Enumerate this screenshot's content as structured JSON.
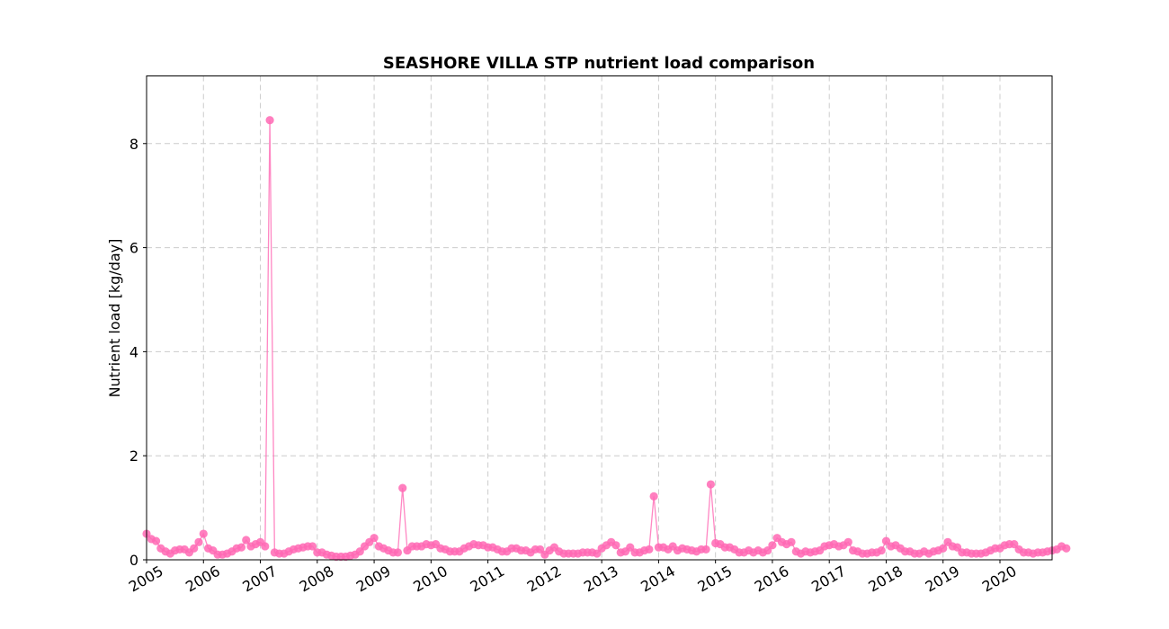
{
  "chart_data": {
    "type": "line",
    "title": "SEASHORE VILLA STP nutrient load comparison",
    "xlabel": "",
    "ylabel": "Nutrient load [kg/day]",
    "x_ticks": [
      "2005",
      "2006",
      "2007",
      "2008",
      "2009",
      "2010",
      "2011",
      "2012",
      "2013",
      "2014",
      "2015",
      "2016",
      "2017",
      "2018",
      "2019",
      "2020"
    ],
    "y_ticks": [
      0,
      2,
      4,
      6,
      8
    ],
    "xlim": [
      "2005-01",
      "2020-12"
    ],
    "ylim": [
      0,
      9.3
    ],
    "grid": true,
    "legend": "none",
    "colors": {
      "series": "#ff69b4",
      "grid": "#cccccc",
      "axes": "#000000"
    },
    "series": [
      {
        "x_start": "2005-01",
        "frequency": "monthly",
        "values": [
          0.5,
          0.4,
          0.36,
          0.22,
          0.16,
          0.12,
          0.18,
          0.2,
          0.2,
          0.14,
          0.22,
          0.34,
          0.5,
          0.22,
          0.18,
          0.1,
          0.1,
          0.12,
          0.16,
          0.22,
          0.24,
          0.38,
          0.26,
          0.3,
          0.34,
          0.26,
          8.45,
          0.14,
          0.12,
          0.12,
          0.16,
          0.2,
          0.22,
          0.24,
          0.26,
          0.26,
          0.14,
          0.14,
          0.1,
          0.08,
          0.06,
          0.06,
          0.06,
          0.08,
          0.1,
          0.16,
          0.26,
          0.34,
          0.42,
          0.26,
          0.22,
          0.18,
          0.14,
          0.14,
          1.38,
          0.18,
          0.26,
          0.26,
          0.26,
          0.3,
          0.28,
          0.3,
          0.22,
          0.2,
          0.16,
          0.16,
          0.16,
          0.22,
          0.26,
          0.3,
          0.28,
          0.28,
          0.24,
          0.24,
          0.2,
          0.16,
          0.16,
          0.22,
          0.22,
          0.18,
          0.18,
          0.14,
          0.2,
          0.2,
          0.1,
          0.18,
          0.24,
          0.16,
          0.12,
          0.12,
          0.12,
          0.12,
          0.14,
          0.14,
          0.14,
          0.12,
          0.22,
          0.28,
          0.34,
          0.28,
          0.14,
          0.16,
          0.24,
          0.14,
          0.14,
          0.18,
          0.2,
          1.22,
          0.24,
          0.24,
          0.2,
          0.26,
          0.18,
          0.22,
          0.2,
          0.18,
          0.16,
          0.2,
          0.2,
          1.45,
          0.32,
          0.3,
          0.24,
          0.24,
          0.2,
          0.14,
          0.14,
          0.18,
          0.14,
          0.18,
          0.14,
          0.18,
          0.28,
          0.42,
          0.34,
          0.3,
          0.34,
          0.16,
          0.12,
          0.16,
          0.14,
          0.16,
          0.18,
          0.26,
          0.28,
          0.3,
          0.26,
          0.28,
          0.34,
          0.18,
          0.16,
          0.12,
          0.12,
          0.14,
          0.14,
          0.18,
          0.36,
          0.26,
          0.28,
          0.22,
          0.16,
          0.16,
          0.12,
          0.12,
          0.16,
          0.12,
          0.16,
          0.18,
          0.22,
          0.34,
          0.26,
          0.24,
          0.14,
          0.14,
          0.12,
          0.12,
          0.12,
          0.14,
          0.18,
          0.22,
          0.22,
          0.28,
          0.3,
          0.3,
          0.2,
          0.14,
          0.14,
          0.12,
          0.14,
          0.14,
          0.16,
          0.18,
          0.2,
          0.26,
          0.22
        ]
      }
    ]
  }
}
